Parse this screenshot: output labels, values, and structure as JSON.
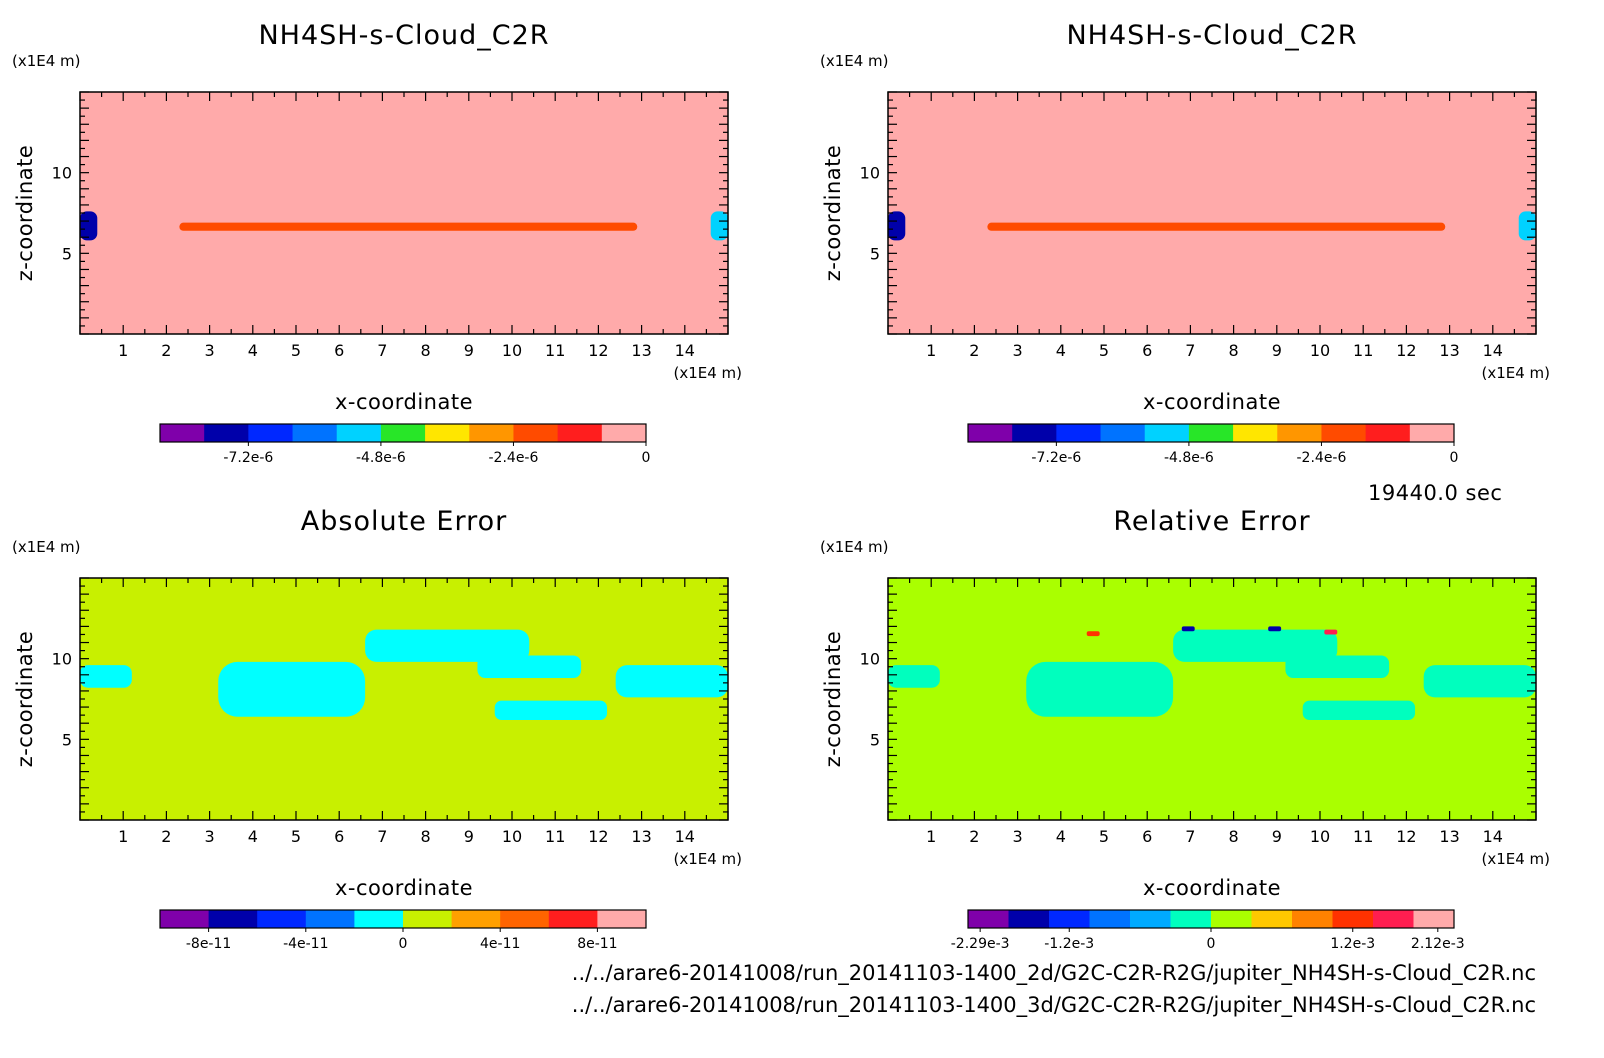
{
  "info": {
    "time": "19440.0 sec",
    "file1": "../../arare6-20141008/run_20141103-1400_2d/G2C-C2R-R2G/jupiter_NH4SH-s-Cloud_C2R.nc",
    "file2": "../../arare6-20141008/run_20141103-1400_3d/G2C-C2R-R2G/jupiter_NH4SH-s-Cloud_C2R.nc"
  },
  "chart_data": [
    {
      "type": "heatmap",
      "title": "NH4SH-s-Cloud_C2R",
      "xlabel": "x-coordinate",
      "ylabel": "z-coordinate",
      "x_unit": "(x1E4 m)",
      "y_unit": "(x1E4 m)",
      "xlim": [
        0,
        15
      ],
      "ylim": [
        0,
        15
      ],
      "x_ticks": [
        "1",
        "2",
        "3",
        "4",
        "5",
        "6",
        "7",
        "8",
        "9",
        "10",
        "11",
        "12",
        "13",
        "14"
      ],
      "y_ticks": [
        "5",
        "10"
      ],
      "background_color": "#ffaaaa",
      "colorbar": {
        "colors": [
          "#7f00aa",
          "#0000aa",
          "#0028ff",
          "#0073ff",
          "#00d2ff",
          "#28e628",
          "#ffe600",
          "#ff9600",
          "#ff4b00",
          "#ff1e1e",
          "#ffaaaa"
        ],
        "labels": [
          "-7.2e-6",
          "-4.8e-6",
          "-2.4e-6",
          "0"
        ],
        "label_positions": [
          2,
          5,
          8,
          11
        ]
      },
      "features": [
        {
          "kind": "band",
          "x": [
            2.3,
            12.9
          ],
          "z": [
            6.4,
            6.9
          ],
          "color": "#ff4b00"
        },
        {
          "kind": "cell",
          "x": [
            0,
            0.4
          ],
          "z": [
            5.8,
            7.6
          ],
          "color": "#0000aa"
        },
        {
          "kind": "cell",
          "x": [
            14.6,
            15
          ],
          "z": [
            5.8,
            7.6
          ],
          "color": "#00d2ff"
        }
      ]
    },
    {
      "type": "heatmap",
      "title": "NH4SH-s-Cloud_C2R",
      "xlabel": "x-coordinate",
      "ylabel": "z-coordinate",
      "x_unit": "(x1E4 m)",
      "y_unit": "(x1E4 m)",
      "xlim": [
        0,
        15
      ],
      "ylim": [
        0,
        15
      ],
      "x_ticks": [
        "1",
        "2",
        "3",
        "4",
        "5",
        "6",
        "7",
        "8",
        "9",
        "10",
        "11",
        "12",
        "13",
        "14"
      ],
      "y_ticks": [
        "5",
        "10"
      ],
      "background_color": "#ffaaaa",
      "colorbar": {
        "colors": [
          "#7f00aa",
          "#0000aa",
          "#0028ff",
          "#0073ff",
          "#00d2ff",
          "#28e628",
          "#ffe600",
          "#ff9600",
          "#ff4b00",
          "#ff1e1e",
          "#ffaaaa"
        ],
        "labels": [
          "-7.2e-6",
          "-4.8e-6",
          "-2.4e-6",
          "0"
        ],
        "label_positions": [
          2,
          5,
          8,
          11
        ]
      },
      "features": [
        {
          "kind": "band",
          "x": [
            2.3,
            12.9
          ],
          "z": [
            6.4,
            6.9
          ],
          "color": "#ff4b00"
        },
        {
          "kind": "cell",
          "x": [
            0,
            0.4
          ],
          "z": [
            5.8,
            7.6
          ],
          "color": "#0000aa"
        },
        {
          "kind": "cell",
          "x": [
            14.6,
            15
          ],
          "z": [
            5.8,
            7.6
          ],
          "color": "#00d2ff"
        }
      ]
    },
    {
      "type": "heatmap",
      "title": "Absolute Error",
      "xlabel": "x-coordinate",
      "ylabel": "z-coordinate",
      "x_unit": "(x1E4 m)",
      "y_unit": "(x1E4 m)",
      "xlim": [
        0,
        15
      ],
      "ylim": [
        0,
        15
      ],
      "x_ticks": [
        "1",
        "2",
        "3",
        "4",
        "5",
        "6",
        "7",
        "8",
        "9",
        "10",
        "11",
        "12",
        "13",
        "14"
      ],
      "y_ticks": [
        "5",
        "10"
      ],
      "background_color": "#c8f000",
      "colorbar": {
        "colors": [
          "#7f00aa",
          "#0000aa",
          "#0028ff",
          "#0073ff",
          "#00ffff",
          "#c8f000",
          "#ffa000",
          "#ff6400",
          "#ff1e1e",
          "#ffaaaa"
        ],
        "labels": [
          "-8e-11",
          "-4e-11",
          "0",
          "4e-11",
          "8e-11"
        ],
        "label_positions": [
          1,
          3,
          5,
          7,
          9
        ]
      },
      "features": [
        {
          "kind": "patch",
          "x": [
            3.2,
            6.6
          ],
          "z": [
            6.4,
            9.8
          ],
          "color": "#00ffff"
        },
        {
          "kind": "patch",
          "x": [
            9.2,
            11.6
          ],
          "z": [
            8.8,
            10.2
          ],
          "color": "#00ffff"
        },
        {
          "kind": "patch",
          "x": [
            12.4,
            15
          ],
          "z": [
            7.6,
            9.6
          ],
          "color": "#00ffff"
        },
        {
          "kind": "patch",
          "x": [
            0,
            1.2
          ],
          "z": [
            8.2,
            9.6
          ],
          "color": "#00ffff"
        },
        {
          "kind": "patch",
          "x": [
            6.6,
            10.4
          ],
          "z": [
            9.8,
            11.8
          ],
          "color": "#00ffff"
        },
        {
          "kind": "patch",
          "x": [
            9.6,
            12.2
          ],
          "z": [
            6.2,
            7.4
          ],
          "color": "#00ffff"
        }
      ]
    },
    {
      "type": "heatmap",
      "title": "Relative Error",
      "xlabel": "x-coordinate",
      "ylabel": "z-coordinate",
      "x_unit": "(x1E4 m)",
      "y_unit": "(x1E4 m)",
      "xlim": [
        0,
        15
      ],
      "ylim": [
        0,
        15
      ],
      "x_ticks": [
        "1",
        "2",
        "3",
        "4",
        "5",
        "6",
        "7",
        "8",
        "9",
        "10",
        "11",
        "12",
        "13",
        "14"
      ],
      "y_ticks": [
        "5",
        "10"
      ],
      "background_color": "#aaff00",
      "colorbar": {
        "colors": [
          "#7f00aa",
          "#0000aa",
          "#0028ff",
          "#0073ff",
          "#00aaff",
          "#00ffbe",
          "#aaff00",
          "#ffc800",
          "#ff8200",
          "#ff3200",
          "#ff1e50",
          "#ffaaaa"
        ],
        "labels": [
          "-2.29e-3",
          "-1.2e-3",
          "0",
          "1.2e-3",
          "2.12e-3"
        ],
        "label_positions": [
          0.3,
          2.5,
          6,
          9.5,
          11.6
        ]
      },
      "features": [
        {
          "kind": "patch",
          "x": [
            3.2,
            6.6
          ],
          "z": [
            6.4,
            9.8
          ],
          "color": "#00ffbe"
        },
        {
          "kind": "patch",
          "x": [
            9.2,
            11.6
          ],
          "z": [
            8.8,
            10.2
          ],
          "color": "#00ffbe"
        },
        {
          "kind": "patch",
          "x": [
            12.4,
            15
          ],
          "z": [
            7.6,
            9.6
          ],
          "color": "#00ffbe"
        },
        {
          "kind": "patch",
          "x": [
            0,
            1.2
          ],
          "z": [
            8.2,
            9.6
          ],
          "color": "#00ffbe"
        },
        {
          "kind": "patch",
          "x": [
            6.6,
            10.4
          ],
          "z": [
            9.8,
            11.8
          ],
          "color": "#00ffbe"
        },
        {
          "kind": "patch",
          "x": [
            9.6,
            12.2
          ],
          "z": [
            6.2,
            7.4
          ],
          "color": "#00ffbe"
        },
        {
          "kind": "cell",
          "x": [
            6.8,
            7.1
          ],
          "z": [
            11.7,
            12.0
          ],
          "color": "#0000aa"
        },
        {
          "kind": "cell",
          "x": [
            8.8,
            9.1
          ],
          "z": [
            11.7,
            12.0
          ],
          "color": "#0000aa"
        },
        {
          "kind": "cell",
          "x": [
            4.6,
            4.9
          ],
          "z": [
            11.4,
            11.7
          ],
          "color": "#ff3200"
        },
        {
          "kind": "cell",
          "x": [
            10.1,
            10.4
          ],
          "z": [
            11.5,
            11.8
          ],
          "color": "#ff1e50"
        }
      ]
    }
  ]
}
